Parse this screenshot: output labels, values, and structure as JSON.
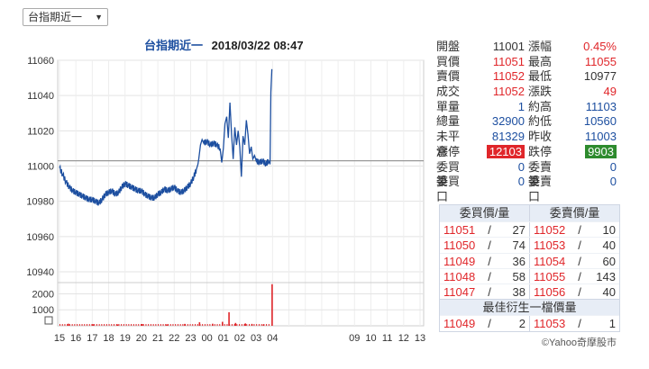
{
  "selector": {
    "label": "台指期近一"
  },
  "chart_title": {
    "name": "台指期近一",
    "timestamp": "2018/03/22 08:47"
  },
  "credit": "©Yahoo奇摩股市",
  "colors": {
    "up": "#e0262a",
    "down": "#1d4fa0",
    "price_line": "#1d4fa0",
    "volume_bar": "#e0262a",
    "reference_line": "#999999"
  },
  "chart_data": {
    "type": "line",
    "price": {
      "ylim": [
        10960,
        11060
      ],
      "y_ticks": [
        "11060",
        "11040",
        "11020",
        "11000",
        "10980",
        "10960",
        "10940"
      ],
      "reference": 11003,
      "series": [
        {
          "x": 0,
          "y": 10999
        },
        {
          "x": 0.2,
          "y": 10995
        },
        {
          "x": 0.4,
          "y": 10991
        },
        {
          "x": 0.6,
          "y": 10988
        },
        {
          "x": 0.8,
          "y": 10986
        },
        {
          "x": 1.0,
          "y": 10985
        },
        {
          "x": 1.2,
          "y": 10984
        },
        {
          "x": 1.4,
          "y": 10983
        },
        {
          "x": 1.6,
          "y": 10982
        },
        {
          "x": 1.8,
          "y": 10981
        },
        {
          "x": 2.0,
          "y": 10981
        },
        {
          "x": 2.2,
          "y": 10980
        },
        {
          "x": 2.4,
          "y": 10979
        },
        {
          "x": 2.6,
          "y": 10981
        },
        {
          "x": 2.8,
          "y": 10984
        },
        {
          "x": 3.0,
          "y": 10985
        },
        {
          "x": 3.2,
          "y": 10986
        },
        {
          "x": 3.4,
          "y": 10984
        },
        {
          "x": 3.6,
          "y": 10985
        },
        {
          "x": 3.8,
          "y": 10988
        },
        {
          "x": 4.0,
          "y": 10990
        },
        {
          "x": 4.2,
          "y": 10989
        },
        {
          "x": 4.4,
          "y": 10988
        },
        {
          "x": 4.6,
          "y": 10987
        },
        {
          "x": 4.8,
          "y": 10986
        },
        {
          "x": 5.0,
          "y": 10986
        },
        {
          "x": 5.2,
          "y": 10984
        },
        {
          "x": 5.4,
          "y": 10983
        },
        {
          "x": 5.6,
          "y": 10982
        },
        {
          "x": 5.8,
          "y": 10982
        },
        {
          "x": 6.0,
          "y": 10984
        },
        {
          "x": 6.2,
          "y": 10985
        },
        {
          "x": 6.4,
          "y": 10987
        },
        {
          "x": 6.6,
          "y": 10986
        },
        {
          "x": 6.8,
          "y": 10987
        },
        {
          "x": 7.0,
          "y": 10988
        },
        {
          "x": 7.2,
          "y": 10986
        },
        {
          "x": 7.4,
          "y": 10985
        },
        {
          "x": 7.6,
          "y": 10986
        },
        {
          "x": 7.8,
          "y": 10988
        },
        {
          "x": 8.0,
          "y": 10990
        },
        {
          "x": 8.2,
          "y": 10994
        },
        {
          "x": 8.35,
          "y": 10998
        },
        {
          "x": 8.45,
          "y": 11001
        },
        {
          "x": 8.5,
          "y": 11004
        },
        {
          "x": 8.6,
          "y": 11012
        },
        {
          "x": 8.7,
          "y": 11015
        },
        {
          "x": 8.8,
          "y": 11013
        },
        {
          "x": 9.0,
          "y": 11014
        },
        {
          "x": 9.2,
          "y": 11012
        },
        {
          "x": 9.4,
          "y": 11013
        },
        {
          "x": 9.6,
          "y": 11012
        },
        {
          "x": 9.8,
          "y": 11010
        },
        {
          "x": 9.9,
          "y": 11002
        },
        {
          "x": 10.0,
          "y": 11010
        },
        {
          "x": 10.1,
          "y": 11024
        },
        {
          "x": 10.2,
          "y": 11028
        },
        {
          "x": 10.3,
          "y": 11016
        },
        {
          "x": 10.4,
          "y": 11036
        },
        {
          "x": 10.5,
          "y": 11018
        },
        {
          "x": 10.6,
          "y": 11004
        },
        {
          "x": 10.7,
          "y": 11022
        },
        {
          "x": 10.8,
          "y": 11012
        },
        {
          "x": 10.9,
          "y": 11020
        },
        {
          "x": 11.0,
          "y": 11011
        },
        {
          "x": 11.1,
          "y": 10994
        },
        {
          "x": 11.2,
          "y": 11017
        },
        {
          "x": 11.3,
          "y": 11012
        },
        {
          "x": 11.4,
          "y": 11026
        },
        {
          "x": 11.5,
          "y": 11018
        },
        {
          "x": 11.6,
          "y": 11007
        },
        {
          "x": 11.7,
          "y": 11011
        },
        {
          "x": 11.8,
          "y": 11004
        },
        {
          "x": 11.9,
          "y": 11006
        },
        {
          "x": 12.0,
          "y": 11003
        },
        {
          "x": 12.2,
          "y": 11002
        },
        {
          "x": 12.4,
          "y": 11003
        },
        {
          "x": 12.6,
          "y": 11001
        },
        {
          "x": 12.75,
          "y": 11003
        },
        {
          "x": 12.85,
          "y": 11001
        },
        {
          "x": 12.9,
          "y": 11042
        },
        {
          "x": 12.96,
          "y": 11055
        }
      ]
    },
    "volume": {
      "y_ticks": [
        "2000",
        "1000"
      ],
      "ylim": [
        0,
        2700
      ],
      "bars": [
        {
          "x": 0.5,
          "v": 130
        },
        {
          "x": 2.0,
          "v": 100
        },
        {
          "x": 3.5,
          "v": 90
        },
        {
          "x": 5.0,
          "v": 110
        },
        {
          "x": 6.5,
          "v": 90
        },
        {
          "x": 7.6,
          "v": 120
        },
        {
          "x": 8.5,
          "v": 220
        },
        {
          "x": 9.3,
          "v": 130
        },
        {
          "x": 9.9,
          "v": 250
        },
        {
          "x": 10.3,
          "v": 850
        },
        {
          "x": 10.7,
          "v": 180
        },
        {
          "x": 11.3,
          "v": 150
        },
        {
          "x": 11.7,
          "v": 120
        },
        {
          "x": 12.4,
          "v": 90
        },
        {
          "x": 12.93,
          "v": 2600
        }
      ]
    },
    "x_ticks": [
      "15",
      "16",
      "17",
      "18",
      "19",
      "20",
      "21",
      "22",
      "23",
      "00",
      "01",
      "02",
      "03",
      "04",
      "05",
      "06",
      "07",
      "08",
      "09",
      "10",
      "11",
      "12",
      "13"
    ],
    "x_label_ticks": [
      "15",
      "16",
      "17",
      "18",
      "19",
      "20",
      "21",
      "22",
      "23",
      "00",
      "01",
      "02",
      "03",
      "04",
      "09",
      "10",
      "11",
      "12",
      "13"
    ]
  },
  "quote": {
    "rows": [
      [
        {
          "label": "開盤",
          "value": "11001",
          "color": "dark"
        },
        {
          "label": "漲幅",
          "value": "0.45%",
          "color": "red"
        }
      ],
      [
        {
          "label": "買價",
          "value": "11051",
          "color": "red"
        },
        {
          "label": "最高",
          "value": "11055",
          "color": "red"
        }
      ],
      [
        {
          "label": "賣價",
          "value": "11052",
          "color": "red"
        },
        {
          "label": "最低",
          "value": "10977",
          "color": "dark"
        }
      ],
      [
        {
          "label": "成交",
          "value": "11052",
          "color": "red"
        },
        {
          "label": "漲跌",
          "value": "49",
          "color": "red"
        }
      ],
      [
        {
          "label": "單量",
          "value": "1",
          "color": "blue"
        },
        {
          "label": "約高",
          "value": "11103",
          "color": "blue"
        }
      ],
      [
        {
          "label": "總量",
          "value": "32900",
          "color": "blue"
        },
        {
          "label": "約低",
          "value": "10560",
          "color": "blue"
        }
      ],
      [
        {
          "label": "未平倉",
          "value": "81329",
          "color": "blue"
        },
        {
          "label": "昨收",
          "value": "11003",
          "color": "blue"
        }
      ],
      [
        {
          "label": "漲停",
          "value": "12103",
          "color": "badge-red"
        },
        {
          "label": "跌停",
          "value": "9903",
          "color": "badge-green"
        }
      ],
      [
        {
          "label": "委買筆",
          "value": "0",
          "color": "blue"
        },
        {
          "label": "委賣筆",
          "value": "0",
          "color": "blue"
        }
      ],
      [
        {
          "label": "委買口",
          "value": "0",
          "color": "blue"
        },
        {
          "label": "委賣口",
          "value": "0",
          "color": "blue"
        }
      ]
    ]
  },
  "order_book": {
    "bid_header": "委買價/量",
    "ask_header": "委賣價/量",
    "rows": [
      {
        "bid_price": "11051",
        "bid_qty": "27",
        "ask_price": "11052",
        "ask_qty": "10"
      },
      {
        "bid_price": "11050",
        "bid_qty": "74",
        "ask_price": "11053",
        "ask_qty": "40"
      },
      {
        "bid_price": "11049",
        "bid_qty": "36",
        "ask_price": "11054",
        "ask_qty": "60"
      },
      {
        "bid_price": "11048",
        "bid_qty": "58",
        "ask_price": "11055",
        "ask_qty": "143"
      },
      {
        "bid_price": "11047",
        "bid_qty": "38",
        "ask_price": "11056",
        "ask_qty": "40"
      }
    ],
    "best_header": "最佳衍生一檔價量",
    "best": {
      "bid_price": "11049",
      "bid_qty": "2",
      "ask_price": "11053",
      "ask_qty": "1"
    },
    "separator": "/"
  }
}
